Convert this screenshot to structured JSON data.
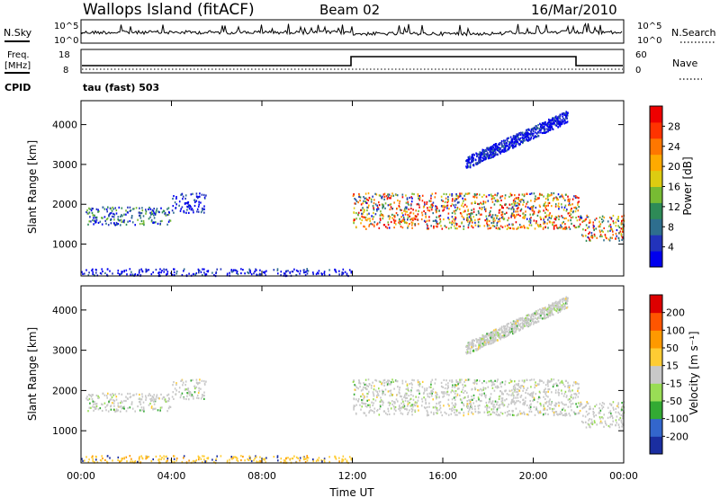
{
  "header": {
    "station": "Wallops Island (fitACF)",
    "beam": "Beam 02",
    "date": "16/Mar/2010"
  },
  "noise_panel": {
    "left_label": "N.Sky",
    "right_label": "N.Search",
    "ticks": [
      "10^5",
      "10^0"
    ]
  },
  "freq_panel": {
    "left_label_top": "Freq.",
    "left_label_unit": "[MHz]",
    "left_ticks": [
      "18",
      "8"
    ],
    "right_label": "Nave",
    "right_ticks": [
      "60",
      "0"
    ],
    "cpid_label": "CPID",
    "cpid_value": "tau (fast) 503"
  },
  "chart_data": [
    {
      "type": "heatmap",
      "title": "",
      "ylabel": "Slant Range [km]",
      "xlabel": "",
      "ylim": [
        200,
        4600
      ],
      "yticks": [
        "1000",
        "2000",
        "3000",
        "4000"
      ],
      "colorbar": {
        "label": "Power [dB]",
        "ticks": [
          "4",
          "8",
          "12",
          "16",
          "20",
          "24",
          "28"
        ],
        "colors": [
          "#0000ee",
          "#2233bb",
          "#2e6e8e",
          "#2e8b57",
          "#77bb33",
          "#ddcc11",
          "#ffaa00",
          "#ff7700",
          "#ff3300",
          "#ee0000"
        ]
      },
      "bands": [
        {
          "t0": 0.2,
          "t1": 4.0,
          "r0": 1500,
          "r1": 1950,
          "level": "mid"
        },
        {
          "t0": 4.0,
          "t1": 5.5,
          "r0": 1800,
          "r1": 2300,
          "level": "low"
        },
        {
          "t0": 12.0,
          "t1": 22.0,
          "r0": 1400,
          "r1": 2300,
          "level": "high"
        },
        {
          "t0": 22.0,
          "t1": 24.0,
          "r0": 1100,
          "r1": 1750,
          "level": "high"
        },
        {
          "t0": 17.0,
          "t1": 21.5,
          "r0": 2900,
          "r1": 4200,
          "level": "low"
        },
        {
          "t0": 0.0,
          "t1": 12.0,
          "r0": 200,
          "r1": 400,
          "level": "low"
        }
      ]
    },
    {
      "type": "heatmap",
      "title": "",
      "ylabel": "Slant Range [km]",
      "xlabel": "Time UT",
      "ylim": [
        200,
        4600
      ],
      "yticks": [
        "1000",
        "2000",
        "3000",
        "4000"
      ],
      "xticks": [
        "00:00",
        "04:00",
        "08:00",
        "12:00",
        "16:00",
        "20:00",
        "00:00"
      ],
      "colorbar": {
        "label": "Velocity [m s⁻¹]",
        "ticks": [
          "200",
          "100",
          "50",
          "15",
          "-15",
          "-50",
          "-100",
          "-200"
        ],
        "colors": [
          "#1a2ea0",
          "#3366cc",
          "#33aa33",
          "#99dd55",
          "#c8c8c8",
          "#ffcc33",
          "#ff9900",
          "#ff5500",
          "#dd0000"
        ]
      }
    }
  ]
}
